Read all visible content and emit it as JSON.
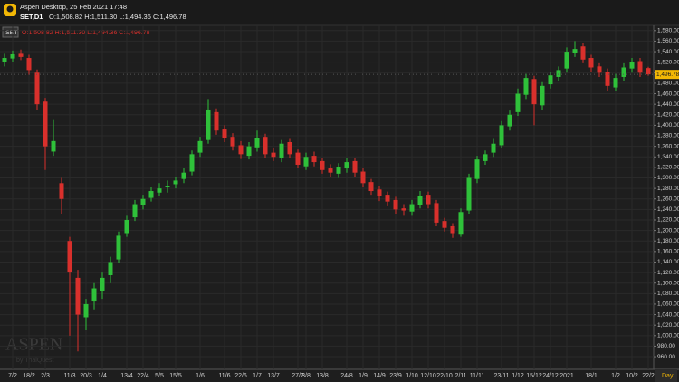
{
  "header": {
    "app": "Aspen Desktop, 25 Feb 2021 17:48",
    "symbol": "SET,D1",
    "ohlc": "O:1,508.82 H:1,511.30 L:1,494.36 C:1,496.78"
  },
  "chart_data": {
    "type": "candlestick",
    "symbol_tag": "SET",
    "legend_ohlc": "O:1,508.82 H:1,511.30 L:1,494.36 C:1,496.78",
    "watermark": "ASPEN",
    "watermark_sub": "by ThaiQuest",
    "period": "Day",
    "last_price_label": "1,496.78",
    "up_color": "#2fc13a",
    "down_color": "#d9302c",
    "grid": true,
    "categories": [
      null,
      "7/2",
      null,
      "18/2",
      null,
      "2/3",
      null,
      null,
      "11/3",
      null,
      "20/3",
      null,
      "1/4",
      null,
      null,
      "13/4",
      null,
      "22/4",
      null,
      "5/5",
      null,
      "15/5",
      null,
      null,
      "1/6",
      null,
      null,
      "11/6",
      null,
      "22/6",
      null,
      "1/7",
      null,
      "13/7",
      null,
      null,
      "27/7",
      "3/8",
      null,
      "13/8",
      null,
      null,
      "24/8",
      null,
      "1/9",
      null,
      "14/9",
      null,
      "23/9",
      null,
      "1/10",
      null,
      "12/10",
      null,
      "22/10",
      null,
      "2/11",
      null,
      "11/11",
      null,
      null,
      "23/11",
      null,
      "1/12",
      null,
      "15/12",
      null,
      "24/12",
      null,
      "2021",
      null,
      null,
      "18/1",
      null,
      null,
      "1/2",
      null,
      "10/2",
      null,
      "22/2"
    ],
    "open": [
      1520,
      1527,
      1536,
      1528,
      1500,
      1445,
      1350,
      1290,
      1180,
      1110,
      1035,
      1065,
      1085,
      1115,
      1145,
      1195,
      1225,
      1248,
      1262,
      1272,
      1282,
      1288,
      1298,
      1312,
      1348,
      1372,
      1425,
      1392,
      1378,
      1362,
      1342,
      1358,
      1378,
      1348,
      1338,
      1368,
      1348,
      1322,
      1342,
      1332,
      1318,
      1308,
      1318,
      1332,
      1312,
      1292,
      1278,
      1268,
      1258,
      1242,
      1236,
      1248,
      1268,
      1252,
      1218,
      1208,
      1192,
      1238,
      1298,
      1332,
      1348,
      1362,
      1398,
      1425,
      1458,
      1488,
      1438,
      1478,
      1492,
      1508,
      1538,
      1550,
      1528,
      1512,
      1502,
      1472,
      1492,
      1508,
      1522,
      1508.82
    ],
    "high": [
      1536,
      1542,
      1544,
      1534,
      1506,
      1452,
      1410,
      1300,
      1188,
      1125,
      1070,
      1100,
      1120,
      1150,
      1198,
      1228,
      1258,
      1268,
      1282,
      1290,
      1295,
      1302,
      1318,
      1352,
      1378,
      1450,
      1432,
      1400,
      1385,
      1370,
      1368,
      1390,
      1384,
      1356,
      1372,
      1374,
      1354,
      1348,
      1350,
      1338,
      1326,
      1328,
      1338,
      1338,
      1318,
      1298,
      1284,
      1274,
      1264,
      1250,
      1258,
      1275,
      1274,
      1258,
      1224,
      1214,
      1242,
      1308,
      1342,
      1352,
      1374,
      1408,
      1428,
      1470,
      1498,
      1494,
      1482,
      1502,
      1512,
      1548,
      1560,
      1556,
      1534,
      1518,
      1508,
      1498,
      1518,
      1528,
      1528,
      1511.3
    ],
    "low": [
      1512,
      1520,
      1524,
      1496,
      1430,
      1315,
      1342,
      1232,
      1000,
      970,
      1010,
      1050,
      1070,
      1100,
      1138,
      1188,
      1218,
      1240,
      1255,
      1265,
      1272,
      1280,
      1290,
      1305,
      1340,
      1365,
      1382,
      1368,
      1352,
      1336,
      1335,
      1350,
      1338,
      1332,
      1330,
      1338,
      1318,
      1315,
      1322,
      1308,
      1302,
      1300,
      1310,
      1302,
      1282,
      1268,
      1256,
      1246,
      1232,
      1228,
      1228,
      1242,
      1242,
      1208,
      1198,
      1186,
      1188,
      1232,
      1290,
      1325,
      1340,
      1356,
      1390,
      1418,
      1450,
      1400,
      1430,
      1470,
      1485,
      1500,
      1530,
      1518,
      1502,
      1492,
      1465,
      1465,
      1485,
      1500,
      1492,
      1494.36
    ],
    "close": [
      1528,
      1535,
      1530,
      1505,
      1440,
      1360,
      1370,
      1260,
      1120,
      1040,
      1060,
      1090,
      1110,
      1140,
      1190,
      1220,
      1250,
      1260,
      1275,
      1280,
      1285,
      1295,
      1310,
      1345,
      1370,
      1430,
      1390,
      1375,
      1360,
      1345,
      1360,
      1375,
      1345,
      1340,
      1365,
      1345,
      1325,
      1340,
      1330,
      1315,
      1310,
      1320,
      1330,
      1310,
      1290,
      1275,
      1265,
      1255,
      1240,
      1238,
      1250,
      1265,
      1250,
      1215,
      1205,
      1195,
      1235,
      1300,
      1335,
      1345,
      1365,
      1400,
      1420,
      1460,
      1490,
      1440,
      1475,
      1495,
      1505,
      1540,
      1545,
      1525,
      1510,
      1500,
      1475,
      1490,
      1510,
      1520,
      1500,
      1496.78
    ],
    "ylim": [
      936,
      1590
    ],
    "yticks": [
      {
        "value": 960,
        "label": "960.00"
      },
      {
        "value": 980,
        "label": "980.00"
      },
      {
        "value": 1000,
        "label": "1,000.00"
      },
      {
        "value": 1020,
        "label": "1,020.00"
      },
      {
        "value": 1040,
        "label": "1,040.00"
      },
      {
        "value": 1060,
        "label": "1,060.00"
      },
      {
        "value": 1080,
        "label": "1,080.00"
      },
      {
        "value": 1100,
        "label": "1,100.00"
      },
      {
        "value": 1120,
        "label": "1,120.00"
      },
      {
        "value": 1140,
        "label": "1,140.00"
      },
      {
        "value": 1160,
        "label": "1,160.00"
      },
      {
        "value": 1180,
        "label": "1,180.00"
      },
      {
        "value": 1200,
        "label": "1,200.00"
      },
      {
        "value": 1220,
        "label": "1,220.00"
      },
      {
        "value": 1240,
        "label": "1,240.00"
      },
      {
        "value": 1260,
        "label": "1,260.00"
      },
      {
        "value": 1280,
        "label": "1,280.00"
      },
      {
        "value": 1300,
        "label": "1,300.00"
      },
      {
        "value": 1320,
        "label": "1,320.00"
      },
      {
        "value": 1340,
        "label": "1,340.00"
      },
      {
        "value": 1360,
        "label": "1,360.00"
      },
      {
        "value": 1380,
        "label": "1,380.00"
      },
      {
        "value": 1400,
        "label": "1,400.00"
      },
      {
        "value": 1420,
        "label": "1,420.00"
      },
      {
        "value": 1440,
        "label": "1,440.00"
      },
      {
        "value": 1460,
        "label": "1,460.00"
      },
      {
        "value": 1480,
        "label": "1,480.00"
      },
      {
        "value": 1500,
        "label": "1,500.00"
      },
      {
        "value": 1520,
        "label": "1,520.00"
      },
      {
        "value": 1540,
        "label": "1,540.00"
      },
      {
        "value": 1560,
        "label": "1,560.00"
      },
      {
        "value": 1580,
        "label": "1,580.00"
      }
    ]
  }
}
